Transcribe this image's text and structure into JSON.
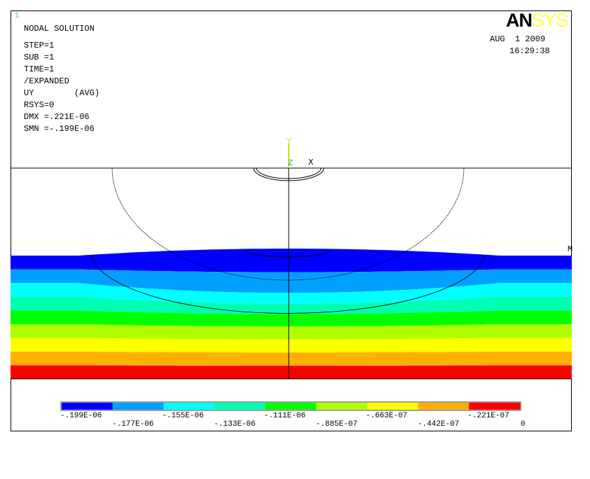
{
  "window_number": "1",
  "info": {
    "title": "NODAL SOLUTION",
    "step": "STEP=1",
    "sub": "SUB =1",
    "time": "TIME=1",
    "expanded": "/EXPANDED",
    "item": "UY        (AVG)",
    "rsys": "RSYS=0",
    "dmx": "DMX =.221E-06",
    "smn": "SMN =-.199E-06"
  },
  "logo": {
    "an": "AN",
    "sys": "SYS"
  },
  "date": "AUG  1 2009",
  "time": "16:29:38",
  "axes": {
    "y": "Y",
    "z": "Z",
    "x": "X"
  },
  "marker": "M",
  "legend": {
    "colors": [
      "#0000ff",
      "#00a0ff",
      "#00ffff",
      "#00ffb0",
      "#00ff00",
      "#b0ff00",
      "#ffff00",
      "#ffb000",
      "#ff0000"
    ],
    "labels_top": [
      "-.199E-06",
      "-.155E-06",
      "-.111E-06",
      "-.663E-07",
      "-.221E-07"
    ],
    "labels_bottom": [
      "-.177E-06",
      "-.133E-06",
      "-.885E-07",
      "-.442E-07",
      "0"
    ]
  }
}
